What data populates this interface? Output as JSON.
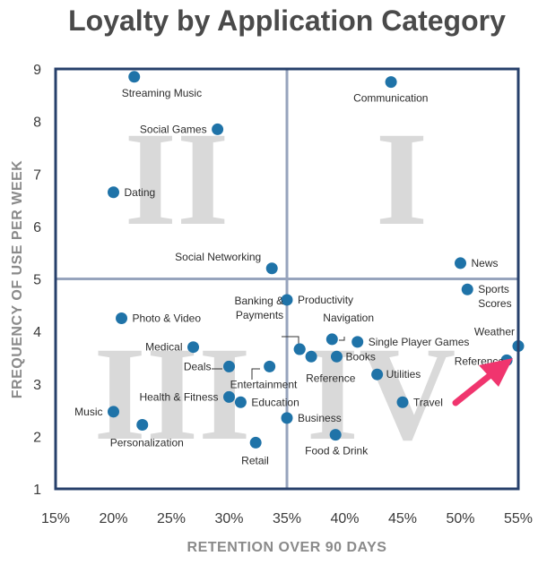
{
  "chart_data": {
    "type": "scatter",
    "title": "Loyalty by Application Category",
    "xlabel": "RETENTION OVER 90 DAYS",
    "ylabel": "FREQUENCY OF USE PER WEEK",
    "xlim": [
      15,
      55
    ],
    "ylim": [
      1,
      9
    ],
    "x_ticks": [
      15,
      20,
      25,
      30,
      35,
      40,
      45,
      50,
      55
    ],
    "x_tick_labels": [
      "15%",
      "20%",
      "25%",
      "30%",
      "35%",
      "40%",
      "45%",
      "50%",
      "55%"
    ],
    "y_ticks": [
      1,
      2,
      3,
      4,
      5,
      6,
      7,
      8,
      9
    ],
    "y_tick_labels": [
      "1",
      "2",
      "3",
      "4",
      "5",
      "6",
      "7",
      "8",
      "9"
    ],
    "divider_x": 35,
    "divider_y": 5,
    "quadrant_labels": [
      "I",
      "II",
      "III",
      "IV"
    ],
    "point_color": "#1f73a8",
    "frame_color": "#27406b",
    "divider_color": "#97a4bd",
    "arrow_color": "#f0356e",
    "points": [
      {
        "label": "Streaming Music",
        "x": 21.8,
        "y": 8.85,
        "anchor": "start",
        "dx": -14,
        "dy": 22
      },
      {
        "label": "Communication",
        "x": 44.0,
        "y": 8.75,
        "anchor": "start",
        "dx": -42,
        "dy": 22
      },
      {
        "label": "Social Games",
        "x": 29.0,
        "y": 7.85,
        "anchor": "end",
        "dx": -12,
        "dy": 4
      },
      {
        "label": "Dating",
        "x": 20.0,
        "y": 6.65,
        "anchor": "start",
        "dx": 12,
        "dy": 4
      },
      {
        "label": "Social Networking",
        "x": 33.7,
        "y": 5.2,
        "anchor": "end",
        "dx": -12,
        "dy": -9
      },
      {
        "label": "News",
        "x": 50.0,
        "y": 5.3,
        "anchor": "start",
        "dx": 12,
        "dy": 4
      },
      {
        "label": "Productivity",
        "x": 35.0,
        "y": 4.6,
        "anchor": "start",
        "dx": 12,
        "dy": 4
      },
      {
        "label": "Sports",
        "x": 50.6,
        "y": 4.8,
        "anchor": "start",
        "dx": 12,
        "dy": 4
      },
      {
        "label": "Scores",
        "x": 50.6,
        "y": 4.8,
        "anchor": "start",
        "dx": 12,
        "dy": 20
      },
      {
        "label": "Photo & Video",
        "x": 20.7,
        "y": 4.25,
        "anchor": "start",
        "dx": 12,
        "dy": 4
      },
      {
        "label": "Medical",
        "x": 26.9,
        "y": 3.7,
        "anchor": "end",
        "dx": -12,
        "dy": 4
      },
      {
        "label": "Deals",
        "x": 30.0,
        "y": 3.33,
        "anchor": "end",
        "dx": -20,
        "dy": 4
      },
      {
        "label": "Banking &",
        "x": 36.1,
        "y": 3.66,
        "anchor": "end",
        "dx": -18,
        "dy": -50
      },
      {
        "label": "Payments",
        "x": 36.1,
        "y": 3.66,
        "anchor": "end",
        "dx": -18,
        "dy": -34
      },
      {
        "label": "Entertainment",
        "x": 33.5,
        "y": 3.33,
        "anchor": "start",
        "dx": -44,
        "dy": 24
      },
      {
        "label": "Reference",
        "x": 37.1,
        "y": 3.52,
        "anchor": "start",
        "dx": -6,
        "dy": 28
      },
      {
        "label": "Navigation",
        "x": 38.9,
        "y": 3.85,
        "anchor": "start",
        "dx": -10,
        "dy": -20
      },
      {
        "label": "Books",
        "x": 39.3,
        "y": 3.52,
        "anchor": "start",
        "dx": 10,
        "dy": 4
      },
      {
        "label": "Single Player Games",
        "x": 41.1,
        "y": 3.8,
        "anchor": "start",
        "dx": 12,
        "dy": 4
      },
      {
        "label": "Utilities",
        "x": 42.8,
        "y": 3.18,
        "anchor": "start",
        "dx": 10,
        "dy": 4
      },
      {
        "label": "Weather",
        "x": 55.0,
        "y": 3.72,
        "anchor": "end",
        "dx": -4,
        "dy": -12
      },
      {
        "label": "Reference",
        "x": 54.0,
        "y": 3.45,
        "anchor": "end",
        "dx": -3,
        "dy": 5
      },
      {
        "label": "Health & Fitness",
        "x": 30.0,
        "y": 2.75,
        "anchor": "end",
        "dx": -12,
        "dy": 4
      },
      {
        "label": "Education",
        "x": 31.0,
        "y": 2.65,
        "anchor": "start",
        "dx": 12,
        "dy": 4
      },
      {
        "label": "Travel",
        "x": 45.0,
        "y": 2.65,
        "anchor": "start",
        "dx": 12,
        "dy": 4
      },
      {
        "label": "Music",
        "x": 20.0,
        "y": 2.47,
        "anchor": "end",
        "dx": -12,
        "dy": 4
      },
      {
        "label": "Business",
        "x": 35.0,
        "y": 2.35,
        "anchor": "start",
        "dx": 12,
        "dy": 4
      },
      {
        "label": "Personalization",
        "x": 22.5,
        "y": 2.22,
        "anchor": "start",
        "dx": -36,
        "dy": 24
      },
      {
        "label": "Food & Drink",
        "x": 39.2,
        "y": 2.03,
        "anchor": "start",
        "dx": -34,
        "dy": 22
      },
      {
        "label": "Retail",
        "x": 32.3,
        "y": 1.88,
        "anchor": "start",
        "dx": -16,
        "dy": 24
      }
    ]
  }
}
